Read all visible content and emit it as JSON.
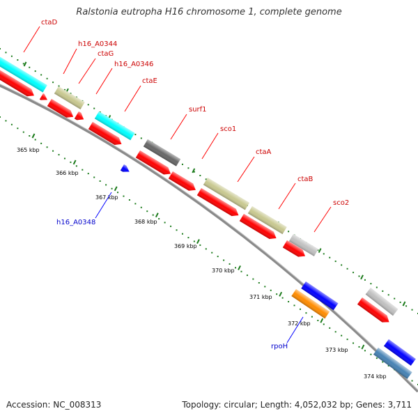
{
  "title": "Ralstonia eutropha H16 chromosome 1, complete genome",
  "footer": {
    "accession": "Accession: NC_008313",
    "summary": "Topology: circular; Length: 4,052,032 bp; Genes: 3,711"
  },
  "colors": {
    "backbone": "#8a8a8a",
    "cds_forward": "#ff0000",
    "ticks": "#1a7a1a",
    "label_forward": "#cc0000",
    "label_reverse": "#0000cc",
    "leader_forward": "#ff0000",
    "leader_reverse": "#0000ff"
  },
  "kbp_labels": [
    "365 kbp",
    "366 kbp",
    "367 kbp",
    "368 kbp",
    "369 kbp",
    "370 kbp",
    "371 kbp",
    "372 kbp",
    "373 kbp",
    "374 kbp"
  ],
  "genes": [
    {
      "name": "ctaD",
      "strand": "forward",
      "color": "#00ffff"
    },
    {
      "name": "h16_A0344",
      "strand": "forward",
      "color": "#c8c890"
    },
    {
      "name": "ctaG",
      "strand": "forward",
      "color": "#ff0000"
    },
    {
      "name": "h16_A0346",
      "strand": "forward",
      "color": "#ff0000"
    },
    {
      "name": "ctaE",
      "strand": "forward",
      "color": "#00ffff"
    },
    {
      "name": "surf1",
      "strand": "forward",
      "color": "#666666"
    },
    {
      "name": "sco1",
      "strand": "forward",
      "color": "#ff0000"
    },
    {
      "name": "ctaA",
      "strand": "forward",
      "color": "#c8c890"
    },
    {
      "name": "ctaB",
      "strand": "forward",
      "color": "#c8c890"
    },
    {
      "name": "sco2",
      "strand": "forward",
      "color": "#c0c0c0"
    },
    {
      "name": "h16_A0348",
      "strand": "reverse",
      "color": "#0000ff"
    },
    {
      "name": "rpoH",
      "strand": "reverse",
      "color": "#ff8c00"
    }
  ]
}
